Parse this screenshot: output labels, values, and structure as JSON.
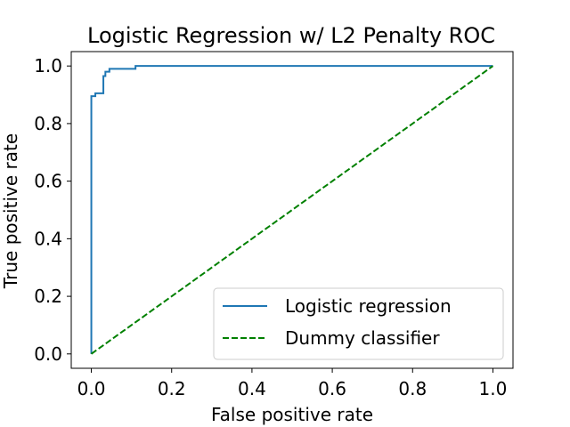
{
  "chart_data": {
    "type": "line",
    "title": "Logistic Regression w/ L2 Penalty ROC",
    "xlabel": "False positive rate",
    "ylabel": "True positive rate",
    "xlim": [
      -0.05,
      1.05
    ],
    "ylim": [
      -0.05,
      1.05
    ],
    "xticks": [
      0.0,
      0.2,
      0.4,
      0.6,
      0.8,
      1.0
    ],
    "xtick_labels": [
      "0.0",
      "0.2",
      "0.4",
      "0.6",
      "0.8",
      "1.0"
    ],
    "yticks": [
      0.0,
      0.2,
      0.4,
      0.6,
      0.8,
      1.0
    ],
    "ytick_labels": [
      "0.0",
      "0.2",
      "0.4",
      "0.6",
      "0.8",
      "1.0"
    ],
    "grid": false,
    "legend_position": "lower-right",
    "series": [
      {
        "name": "Logistic regression",
        "color": "#1f77b4",
        "style": "solid",
        "x": [
          0.0,
          0.0,
          0.0,
          0.0,
          0.01,
          0.01,
          0.03,
          0.03,
          0.035,
          0.035,
          0.045,
          0.045,
          0.11,
          0.11,
          1.0
        ],
        "y": [
          0.0,
          0.0,
          0.89,
          0.895,
          0.895,
          0.905,
          0.905,
          0.965,
          0.965,
          0.98,
          0.98,
          0.99,
          0.99,
          1.0,
          1.0
        ]
      },
      {
        "name": "Dummy classifier",
        "color": "#008000",
        "style": "dashed",
        "x": [
          0.0,
          1.0
        ],
        "y": [
          0.0,
          1.0
        ]
      }
    ]
  }
}
